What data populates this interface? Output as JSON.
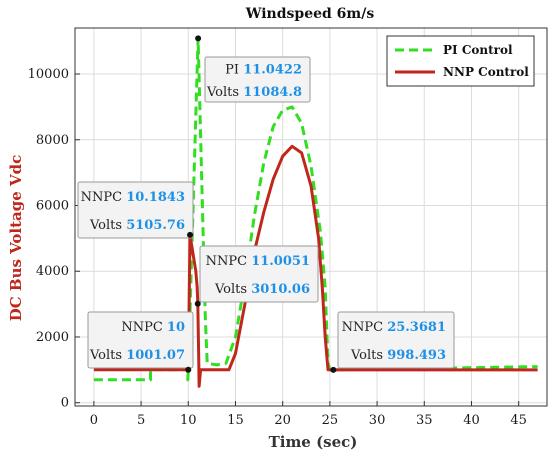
{
  "chart_data": {
    "type": "line",
    "title": "Windspeed 6m/s",
    "xlabel": "Time (sec)",
    "ylabel": "DC Bus Voltage Vdc",
    "xlim": [
      -2,
      48
    ],
    "ylim": [
      -100,
      11400
    ],
    "xticks": [
      0,
      5,
      10,
      15,
      20,
      25,
      30,
      35,
      40,
      45
    ],
    "yticks": [
      0,
      2000,
      4000,
      6000,
      8000,
      10000
    ],
    "grid": true,
    "legend_position": "top-right",
    "series": [
      {
        "name": "PI Control",
        "style": "dashed",
        "color": "#33dd22",
        "x": [
          0,
          6,
          6,
          9.95,
          9.95,
          10,
          11.0422,
          11.5,
          11.8,
          12,
          13,
          14,
          15,
          16,
          17,
          18,
          19,
          20,
          21,
          22,
          23,
          24,
          24.5,
          24.8,
          25,
          26,
          47
        ],
        "y": [
          700,
          700,
          1000,
          1000,
          700,
          1000,
          11084.8,
          6000,
          2600,
          1200,
          1150,
          1200,
          2000,
          3700,
          5700,
          7300,
          8400,
          8900,
          9000,
          8500,
          7200,
          5200,
          3500,
          1200,
          1000,
          1000,
          1100
        ]
      },
      {
        "name": "NNP Control",
        "style": "solid",
        "color": "#c0271c",
        "x": [
          0,
          9.8,
          10,
          10.1843,
          10.8,
          10.95,
          11.0051,
          11.1,
          11.15,
          11.3,
          14.3,
          15,
          16,
          17,
          18,
          19,
          20,
          21,
          22,
          23,
          23.8,
          24.2,
          24.5,
          24.8,
          25.3681,
          47
        ],
        "y": [
          1000,
          1000,
          1001.07,
          5105.76,
          4000,
          3500,
          3010.06,
          1400,
          500,
          1000,
          1000,
          1500,
          3000,
          4600,
          5800,
          6800,
          7500,
          7800,
          7600,
          6600,
          5000,
          3500,
          2000,
          1000,
          998.493,
          998
        ]
      }
    ],
    "datatips": [
      {
        "name": "PI",
        "x_label": "11.0422",
        "y_label": "Volts",
        "y_value": "11084.8",
        "x": 11.0422,
        "y": 11084.8
      },
      {
        "name": "NNPC",
        "x_label": "10.1843",
        "y_label": "Volts",
        "y_value": "5105.76",
        "x": 10.1843,
        "y": 5105.76
      },
      {
        "name": "NNPC",
        "x_label": "11.0051",
        "y_label": "Volts",
        "y_value": "3010.06",
        "x": 11.0051,
        "y": 3010.06
      },
      {
        "name": "NNPC",
        "x_label": "10",
        "y_label": "Volts",
        "y_value": "1001.07",
        "x": 10,
        "y": 1001.07
      },
      {
        "name": "NNPC",
        "x_label": "25.3681",
        "y_label": "Volts",
        "y_value": "998.493",
        "x": 25.3681,
        "y": 998.493
      }
    ]
  }
}
